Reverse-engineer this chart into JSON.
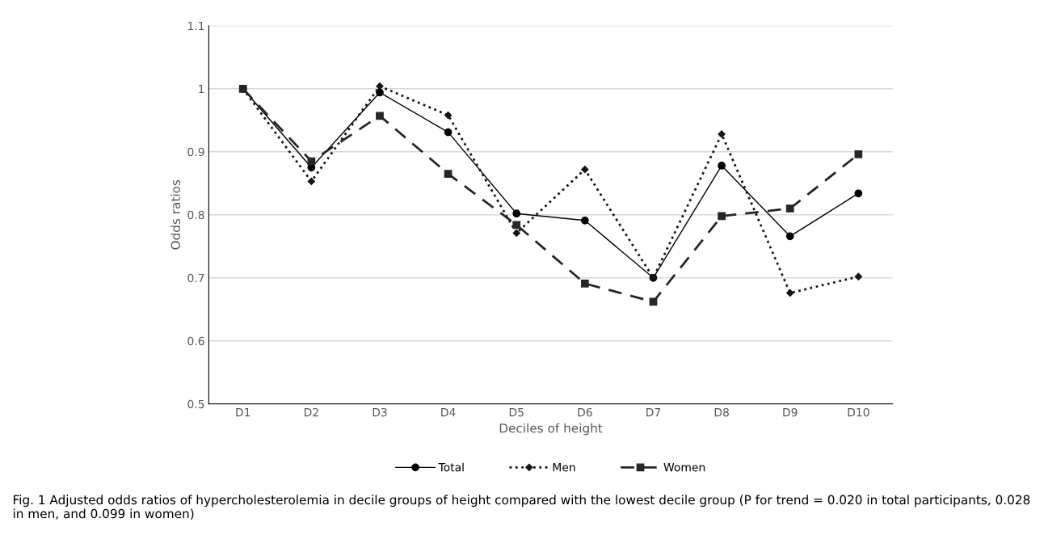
{
  "chart_data": {
    "type": "line",
    "xlabel": "Deciles of height",
    "ylabel": "Odds ratios",
    "categories": [
      "D1",
      "D2",
      "D3",
      "D4",
      "D5",
      "D6",
      "D7",
      "D8",
      "D9",
      "D10"
    ],
    "series": [
      {
        "name": "Total",
        "color": "#000000",
        "marker": "circle",
        "line_style": "solid",
        "values": [
          1.0,
          0.875,
          0.994,
          0.931,
          0.802,
          0.791,
          0.7,
          0.878,
          0.766,
          0.834
        ]
      },
      {
        "name": "Men",
        "color": "#141414",
        "marker": "diamond",
        "line_style": "dotted",
        "values": [
          1.0,
          0.853,
          1.004,
          0.958,
          0.771,
          0.872,
          0.7,
          0.928,
          0.676,
          0.702
        ]
      },
      {
        "name": "Women",
        "color": "#262626",
        "marker": "square",
        "line_style": "dashed",
        "values": [
          1.0,
          0.885,
          0.957,
          0.865,
          0.784,
          0.691,
          0.662,
          0.798,
          0.81,
          0.896
        ]
      }
    ],
    "ylim": [
      0.5,
      1.1
    ],
    "yticks": [
      0.5,
      0.6,
      0.7,
      0.8,
      0.9,
      1,
      1.1
    ],
    "grid": "y",
    "legend": "bottom",
    "annotations": [
      "Fig. 1 Adjusted odds ratios of hypercholesterolemia in decile groups of height compared with the lowest decile group (P for trend = 0.020 in total participants, 0.028 in men, and 0.099 in women)"
    ]
  }
}
